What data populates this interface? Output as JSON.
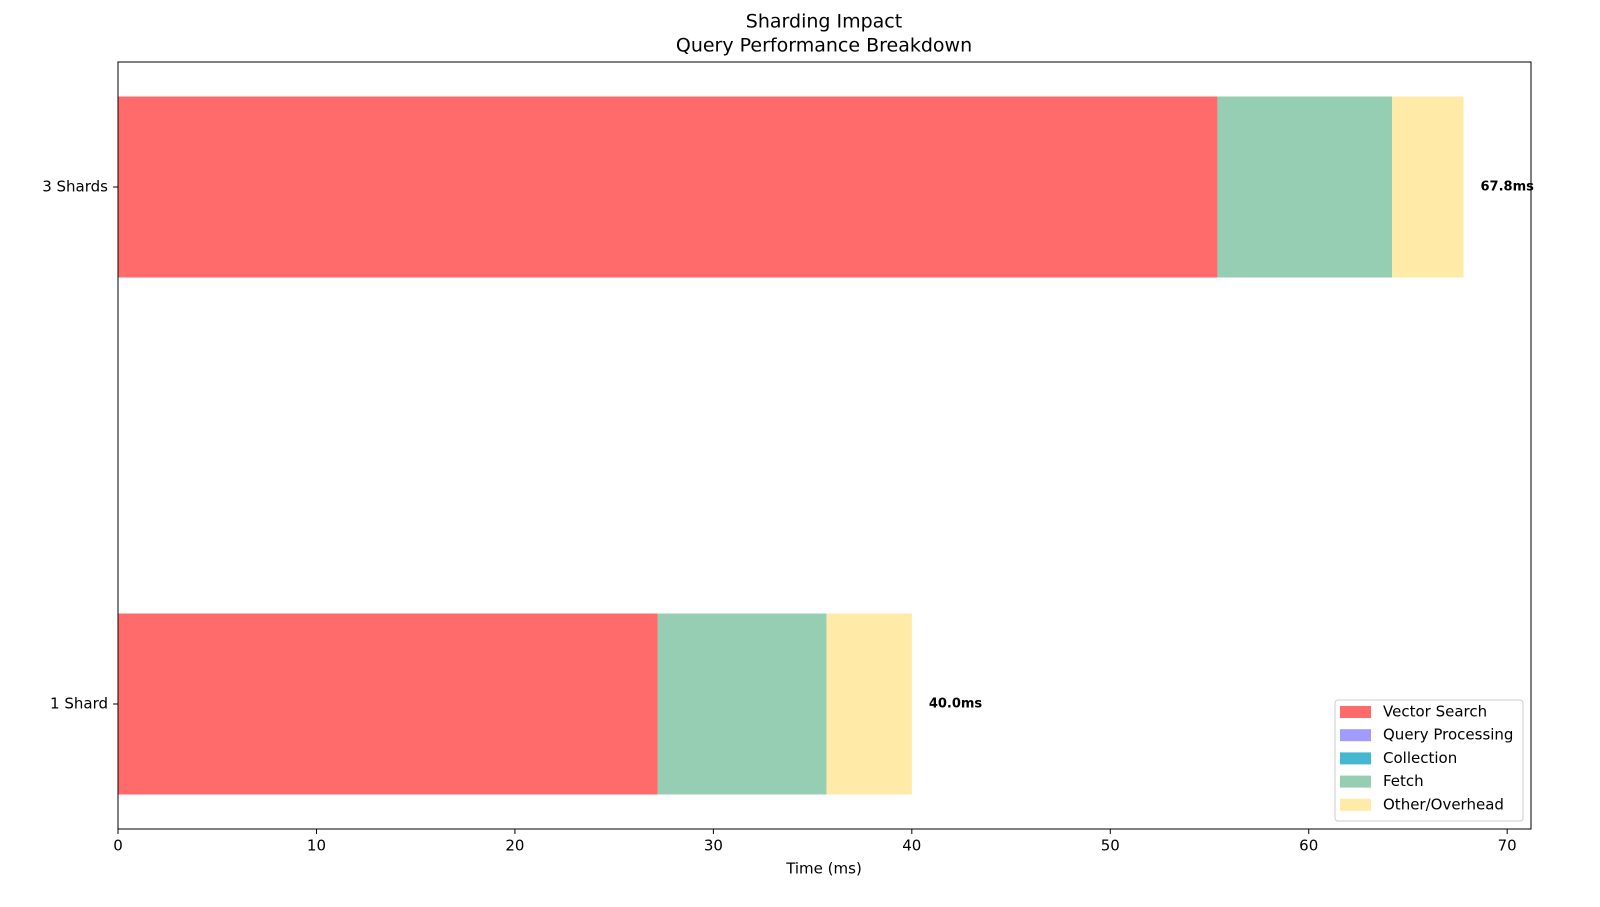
{
  "chart_data": {
    "type": "stacked-barh",
    "title": "Sharding Impact",
    "subtitle": "Query Performance Breakdown",
    "x_label": "Time (ms)",
    "categories": [
      "1 Shard",
      "3 Shards"
    ],
    "series": [
      {
        "name": "Vector Search",
        "color": "#ff6b6b",
        "values": [
          27.2,
          55.4
        ]
      },
      {
        "name": "Query Processing",
        "color": "#a29bfe",
        "values": [
          0,
          0
        ]
      },
      {
        "name": "Collection",
        "color": "#45b7d1",
        "values": [
          0,
          0
        ]
      },
      {
        "name": "Fetch",
        "color": "#96ceb4",
        "values": [
          8.5,
          8.8
        ]
      },
      {
        "name": "Other/Overhead",
        "color": "#ffeaa7",
        "values": [
          4.3,
          3.6
        ]
      }
    ],
    "totals": {
      "values": [
        40.0,
        67.8
      ],
      "value_labels": [
        "40.0ms",
        "67.8ms"
      ]
    },
    "xlim": [
      0,
      71.2
    ],
    "xticks": [
      0,
      10,
      20,
      30,
      40,
      50,
      60,
      70
    ],
    "legend": "lower right"
  }
}
